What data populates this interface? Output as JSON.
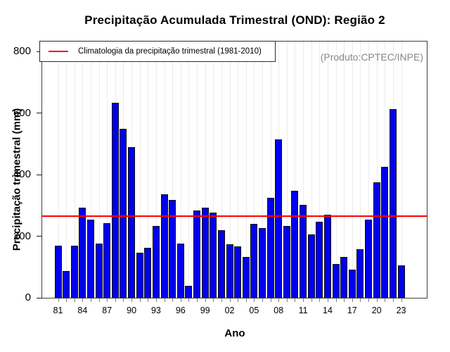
{
  "chart_data": {
    "type": "bar",
    "title": "Precipitação Acumulada Trimestral (OND): Região 2",
    "xlabel": "Ano",
    "ylabel": "Precipitação trimestral (mm)",
    "annotation": "(Produto:CPTEC/INPE)",
    "ylim": [
      0,
      800
    ],
    "yticks": [
      0,
      200,
      400,
      600,
      800
    ],
    "grid": "vertical-dotted",
    "legend_position": "topleft",
    "categories": [
      "1981",
      "1982",
      "1983",
      "1984",
      "1985",
      "1986",
      "1987",
      "1988",
      "1989",
      "1990",
      "1991",
      "1992",
      "1993",
      "1994",
      "1995",
      "1996",
      "1997",
      "1998",
      "1999",
      "2000",
      "2001",
      "2002",
      "2003",
      "2004",
      "2005",
      "2006",
      "2007",
      "2008",
      "2009",
      "2010",
      "2011",
      "2012",
      "2013",
      "2014",
      "2015",
      "2016",
      "2017",
      "2018",
      "2019",
      "2020",
      "2021",
      "2022",
      "2023"
    ],
    "values": [
      168,
      86,
      170,
      293,
      254,
      177,
      242,
      633,
      548,
      489,
      146,
      163,
      234,
      337,
      318,
      175,
      38,
      283,
      293,
      277,
      219,
      173,
      167,
      133,
      239,
      226,
      325,
      514,
      234,
      348,
      302,
      205,
      247,
      270,
      110,
      133,
      91,
      158,
      253,
      375,
      426,
      612,
      104
    ],
    "xtick_labels": [
      "81",
      "84",
      "87",
      "90",
      "93",
      "96",
      "99",
      "02",
      "05",
      "08",
      "11",
      "14",
      "17",
      "20",
      "23"
    ],
    "xtick_label_every": 3,
    "climatology": {
      "label": "Climatologia da precipitação trimestral (1981-2010)",
      "value": 264,
      "period": "1981-2010"
    },
    "colors": {
      "bar": "#0000ee",
      "bar_border": "#0b0b0b",
      "climatology_line": "#ff0000",
      "grid": "#d9d9d9",
      "annotation": "#878787",
      "box": "#3f3f3f"
    }
  }
}
